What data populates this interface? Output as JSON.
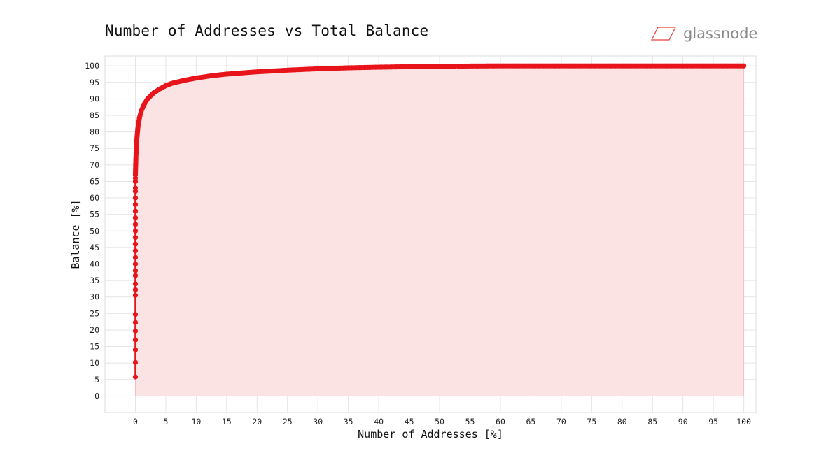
{
  "header": {
    "title": "Number of Addresses vs Total Balance",
    "brand": "glassnode",
    "brand_icon": "glassnode-parallelogram-icon",
    "brand_color": "#e8413c"
  },
  "chart_data": {
    "type": "line",
    "title": "Number of Addresses vs Total Balance",
    "xlabel": "Number of Addresses [%]",
    "ylabel": "Balance [%]",
    "xlim": [
      -5,
      102
    ],
    "ylim": [
      -5,
      103
    ],
    "xticks": [
      0,
      5,
      10,
      15,
      20,
      25,
      30,
      35,
      40,
      45,
      50,
      55,
      60,
      65,
      70,
      75,
      80,
      85,
      90,
      95,
      100
    ],
    "yticks": [
      0,
      5,
      10,
      15,
      20,
      25,
      30,
      35,
      40,
      45,
      50,
      55,
      60,
      65,
      70,
      75,
      80,
      85,
      90,
      95,
      100
    ],
    "grid": true,
    "marker": "circle",
    "fill": "area below line",
    "series": [
      {
        "color": "#e8141b",
        "fill_color": "#fbe3e4",
        "x": [
          0,
          0,
          0,
          0,
          0,
          0,
          0,
          0,
          0,
          0,
          0,
          0,
          0,
          0,
          0,
          0,
          0,
          0,
          0,
          0,
          0,
          0,
          0,
          0,
          0,
          0,
          0,
          0,
          0.05,
          0.1,
          0.15,
          0.2,
          0.3,
          0.4,
          0.5,
          0.7,
          1,
          1.5,
          2,
          3,
          4,
          5,
          6,
          8,
          10,
          12.5,
          15,
          20,
          25,
          30,
          35,
          40,
          45,
          50,
          52.5,
          53,
          55,
          60,
          65,
          70,
          75,
          80,
          85,
          90,
          95,
          100
        ],
        "y": [
          5.8,
          10.2,
          14,
          17,
          19.7,
          22.3,
          24.7,
          30.5,
          32.2,
          34,
          36.5,
          38,
          40,
          42,
          44,
          46,
          48,
          50,
          52,
          54,
          56,
          58,
          60,
          62,
          63,
          65,
          66,
          67,
          70,
          73,
          75,
          77,
          79,
          81,
          82.5,
          84.5,
          86.5,
          88.5,
          90,
          91.8,
          93,
          94,
          94.7,
          95.6,
          96.3,
          97,
          97.5,
          98.2,
          98.7,
          99.1,
          99.4,
          99.6,
          99.75,
          99.85,
          99.9,
          99.9,
          99.95,
          100,
          100,
          100,
          100,
          100,
          100,
          100,
          100,
          100
        ]
      }
    ]
  }
}
